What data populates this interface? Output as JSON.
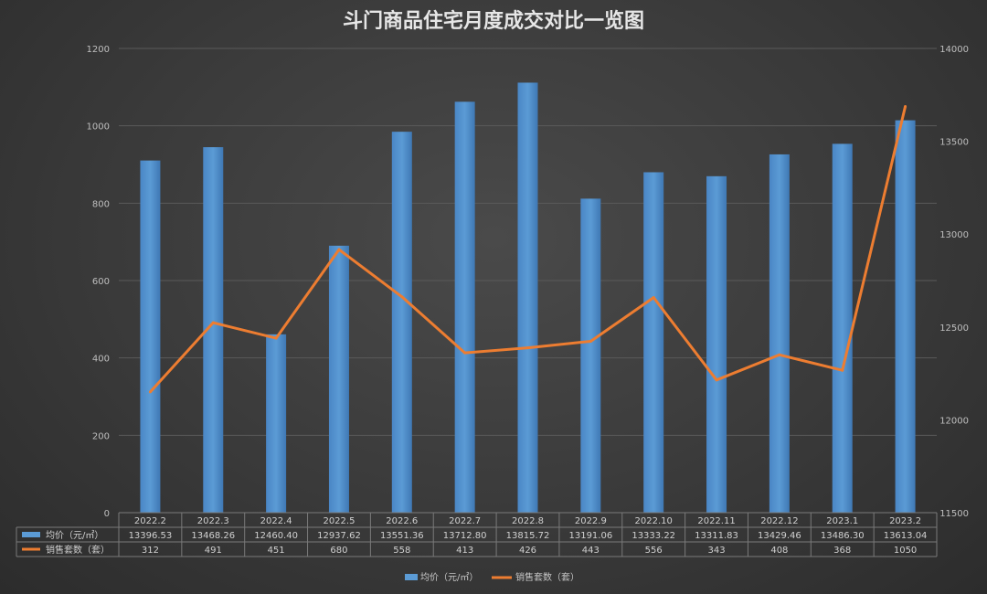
{
  "chart_data": {
    "type": "bar",
    "title": "斗门商品住宅月度成交对比一览图",
    "categories": [
      "2022.2",
      "2022.3",
      "2022.4",
      "2022.5",
      "2022.6",
      "2022.7",
      "2022.8",
      "2022.9",
      "2022.10",
      "2022.11",
      "2022.12",
      "2023.1",
      "2023.2"
    ],
    "left_axis": {
      "ylim": [
        0,
        1200
      ],
      "ticks": [
        "0",
        "200",
        "400",
        "600",
        "800",
        "1000",
        "1200"
      ]
    },
    "right_axis": {
      "ylim": [
        11500,
        14000
      ],
      "ticks": [
        "11500",
        "12000",
        "12500",
        "13000",
        "13500",
        "14000"
      ]
    },
    "series": [
      {
        "name": "均价（元/㎡）",
        "type": "bar",
        "axis": "right",
        "color": "#5b9bd5",
        "values": [
          13396.53,
          13468.26,
          12460.4,
          12937.62,
          13551.36,
          13712.8,
          13815.72,
          13191.06,
          13333.22,
          13311.83,
          13429.46,
          13486.3,
          13613.04
        ],
        "labels": [
          "13396.53",
          "13468.26",
          "12460.40",
          "12937.62",
          "13551.36",
          "13712.80",
          "13815.72",
          "13191.06",
          "13333.22",
          "13311.83",
          "13429.46",
          "13486.30",
          "13613.04"
        ]
      },
      {
        "name": "销售套数（套）",
        "type": "line",
        "axis": "left",
        "color": "#ed7d31",
        "values": [
          312,
          491,
          451,
          680,
          558,
          413,
          426,
          443,
          556,
          343,
          408,
          368,
          1050
        ],
        "labels": [
          "312",
          "491",
          "451",
          "680",
          "558",
          "413",
          "426",
          "443",
          "556",
          "343",
          "408",
          "368",
          "1050"
        ]
      }
    ],
    "grid": true,
    "legend": "bottom",
    "data_table": true
  }
}
